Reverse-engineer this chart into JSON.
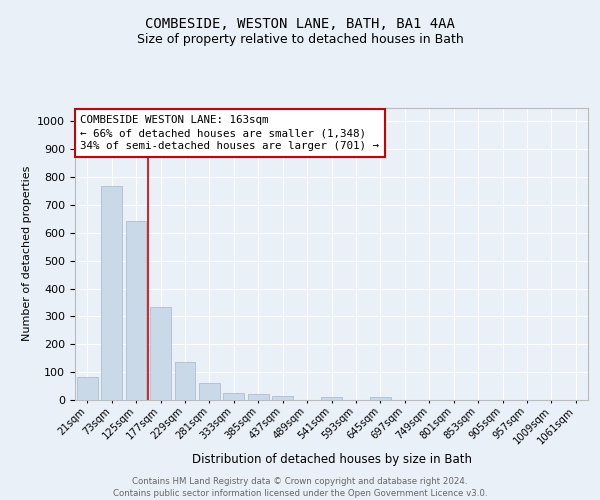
{
  "title1": "COMBESIDE, WESTON LANE, BATH, BA1 4AA",
  "title2": "Size of property relative to detached houses in Bath",
  "xlabel": "Distribution of detached houses by size in Bath",
  "ylabel": "Number of detached properties",
  "bar_labels": [
    "21sqm",
    "73sqm",
    "125sqm",
    "177sqm",
    "229sqm",
    "281sqm",
    "333sqm",
    "385sqm",
    "437sqm",
    "489sqm",
    "541sqm",
    "593sqm",
    "645sqm",
    "697sqm",
    "749sqm",
    "801sqm",
    "853sqm",
    "905sqm",
    "957sqm",
    "1009sqm",
    "1061sqm"
  ],
  "bar_values": [
    83,
    770,
    643,
    333,
    135,
    60,
    25,
    22,
    16,
    0,
    10,
    0,
    12,
    0,
    0,
    0,
    0,
    0,
    0,
    0,
    0
  ],
  "bar_color": "#c9d9e8",
  "bar_edge_color": "#a0b8cc",
  "vline_x": 2.5,
  "vline_color": "#cc0000",
  "annotation_box_text": "COMBESIDE WESTON LANE: 163sqm\n← 66% of detached houses are smaller (1,348)\n34% of semi-detached houses are larger (701) →",
  "ylim": [
    0,
    1050
  ],
  "yticks": [
    0,
    100,
    200,
    300,
    400,
    500,
    600,
    700,
    800,
    900,
    1000
  ],
  "bg_color": "#eaf0f8",
  "plot_bg_color": "#eaf0f8",
  "footer_text": "Contains HM Land Registry data © Crown copyright and database right 2024.\nContains public sector information licensed under the Open Government Licence v3.0.",
  "grid_color": "#ffffff",
  "title1_fontsize": 10,
  "title2_fontsize": 9
}
